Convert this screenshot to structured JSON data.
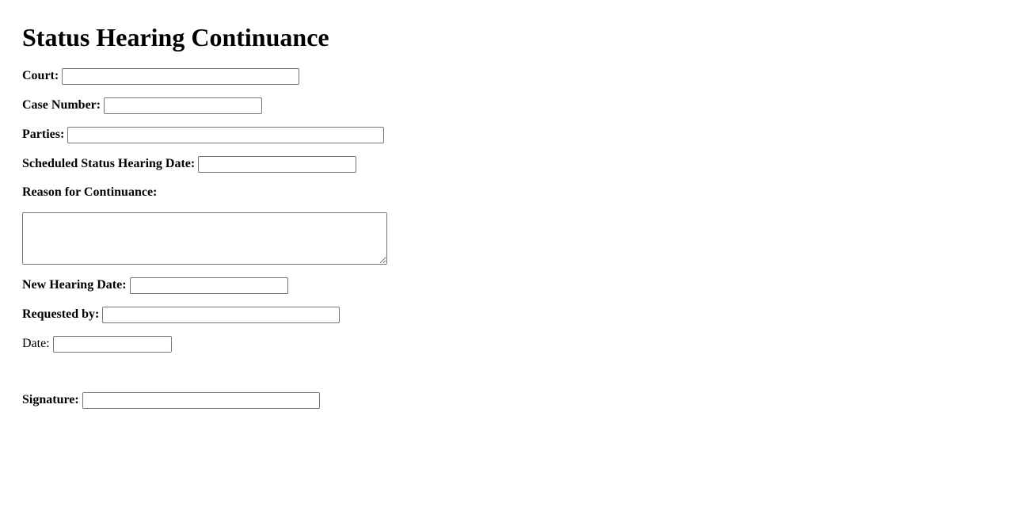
{
  "title": "Status Hearing Continuance",
  "fields": {
    "court": {
      "label": "Court:",
      "value": ""
    },
    "case_number": {
      "label": "Case Number:",
      "value": ""
    },
    "parties": {
      "label": "Parties:",
      "value": ""
    },
    "scheduled_date": {
      "label": "Scheduled Status Hearing Date:",
      "value": ""
    },
    "reason": {
      "label": "Reason for Continuance:",
      "value": ""
    },
    "new_date": {
      "label": "New Hearing Date:",
      "value": ""
    },
    "requested_by": {
      "label": "Requested by:",
      "value": ""
    },
    "date": {
      "label": "Date:",
      "value": ""
    },
    "signature": {
      "label": "Signature:",
      "value": ""
    }
  }
}
